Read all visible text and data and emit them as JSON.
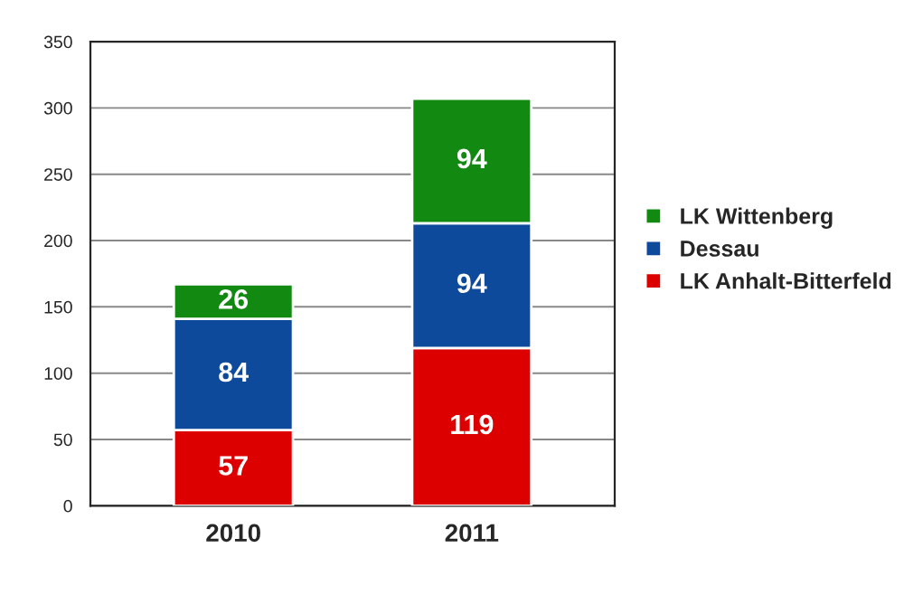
{
  "chart_data": {
    "type": "bar",
    "stacked": true,
    "categories": [
      "2010",
      "2011"
    ],
    "series": [
      {
        "name": "LK Anhalt-Bitterfeld",
        "color": "#dd0000",
        "values": [
          57,
          119
        ]
      },
      {
        "name": "Dessau",
        "color": "#0d4a9c",
        "values": [
          84,
          94
        ]
      },
      {
        "name": "LK Wittenberg",
        "color": "#128a12",
        "values": [
          26,
          94
        ]
      }
    ],
    "ylim": [
      0,
      350
    ],
    "yticks": [
      0,
      50,
      100,
      150,
      200,
      250,
      300,
      350
    ],
    "grid": "y",
    "legend": "right",
    "data_labels": true
  }
}
